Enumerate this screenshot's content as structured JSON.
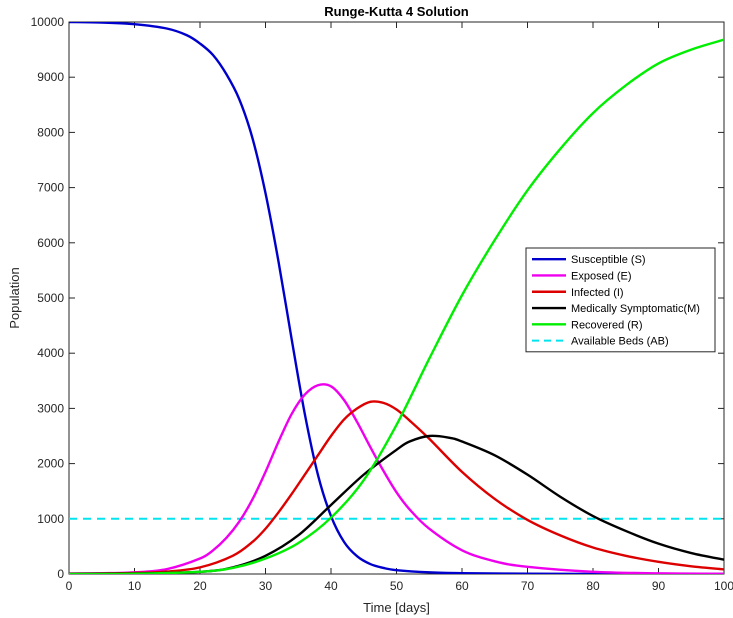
{
  "chart_data": {
    "type": "line",
    "title": "Runge-Kutta 4 Solution",
    "xlabel": "Time [days]",
    "ylabel": "Population",
    "xlim": [
      0,
      100
    ],
    "ylim": [
      0,
      10000
    ],
    "xticks": [
      0,
      10,
      20,
      30,
      40,
      50,
      60,
      70,
      80,
      90,
      100
    ],
    "yticks": [
      0,
      1000,
      2000,
      3000,
      4000,
      5000,
      6000,
      7000,
      8000,
      9000,
      10000
    ],
    "grid": false,
    "legend_position": "right",
    "series": [
      {
        "name": "Susceptible (S)",
        "color": "#0000cc",
        "style": "solid",
        "x": [
          0,
          5,
          10,
          15,
          18,
          20,
          22,
          24,
          26,
          28,
          30,
          32,
          34,
          36,
          38,
          40,
          42,
          44,
          46,
          48,
          50,
          55,
          60,
          70,
          80,
          90,
          100
        ],
        "y": [
          10000,
          9990,
          9960,
          9880,
          9760,
          9610,
          9400,
          9060,
          8600,
          7900,
          6900,
          5650,
          4250,
          2900,
          1800,
          1050,
          580,
          320,
          180,
          110,
          70,
          30,
          15,
          5,
          2,
          1,
          0
        ]
      },
      {
        "name": "Exposed (E)",
        "color": "#ee00ee",
        "style": "solid",
        "x": [
          0,
          5,
          10,
          15,
          20,
          22,
          24,
          26,
          28,
          30,
          32,
          34,
          36,
          38,
          40,
          42,
          44,
          46,
          48,
          50,
          52,
          55,
          60,
          65,
          70,
          80,
          90,
          100
        ],
        "y": [
          10,
          15,
          30,
          90,
          280,
          430,
          650,
          950,
          1350,
          1850,
          2400,
          2900,
          3250,
          3420,
          3400,
          3150,
          2750,
          2300,
          1870,
          1480,
          1170,
          820,
          430,
          230,
          130,
          40,
          12,
          4
        ]
      },
      {
        "name": "Infected (I)",
        "color": "#dd0000",
        "style": "solid",
        "x": [
          0,
          5,
          10,
          15,
          20,
          25,
          28,
          30,
          32,
          34,
          36,
          38,
          40,
          42,
          44,
          46,
          48,
          50,
          52,
          55,
          60,
          65,
          70,
          75,
          80,
          85,
          90,
          95,
          100
        ],
        "y": [
          5,
          10,
          20,
          45,
          120,
          330,
          580,
          820,
          1120,
          1450,
          1800,
          2150,
          2500,
          2800,
          3000,
          3120,
          3100,
          2980,
          2780,
          2450,
          1850,
          1360,
          980,
          700,
          480,
          330,
          220,
          140,
          85
        ]
      },
      {
        "name": "Medically Symptomatic(M)",
        "color": "#000000",
        "style": "solid",
        "x": [
          0,
          10,
          20,
          25,
          30,
          35,
          40,
          45,
          50,
          52,
          55,
          58,
          60,
          65,
          70,
          75,
          80,
          85,
          90,
          95,
          100
        ],
        "y": [
          0,
          10,
          40,
          120,
          330,
          700,
          1250,
          1800,
          2250,
          2400,
          2500,
          2470,
          2400,
          2150,
          1800,
          1400,
          1050,
          780,
          550,
          380,
          260
        ]
      },
      {
        "name": "Recovered (R)",
        "color": "#00ee00",
        "style": "solid",
        "x": [
          0,
          10,
          20,
          25,
          30,
          35,
          40,
          45,
          50,
          55,
          60,
          65,
          70,
          75,
          80,
          85,
          90,
          95,
          100
        ],
        "y": [
          0,
          5,
          40,
          110,
          280,
          560,
          1020,
          1700,
          2700,
          3900,
          5050,
          6050,
          6950,
          7700,
          8350,
          8850,
          9250,
          9500,
          9680
        ]
      },
      {
        "name": "Available Beds (AB)",
        "color": "#00e5ee",
        "style": "dashed",
        "x": [
          0,
          100
        ],
        "y": [
          1000,
          1000
        ]
      }
    ]
  }
}
